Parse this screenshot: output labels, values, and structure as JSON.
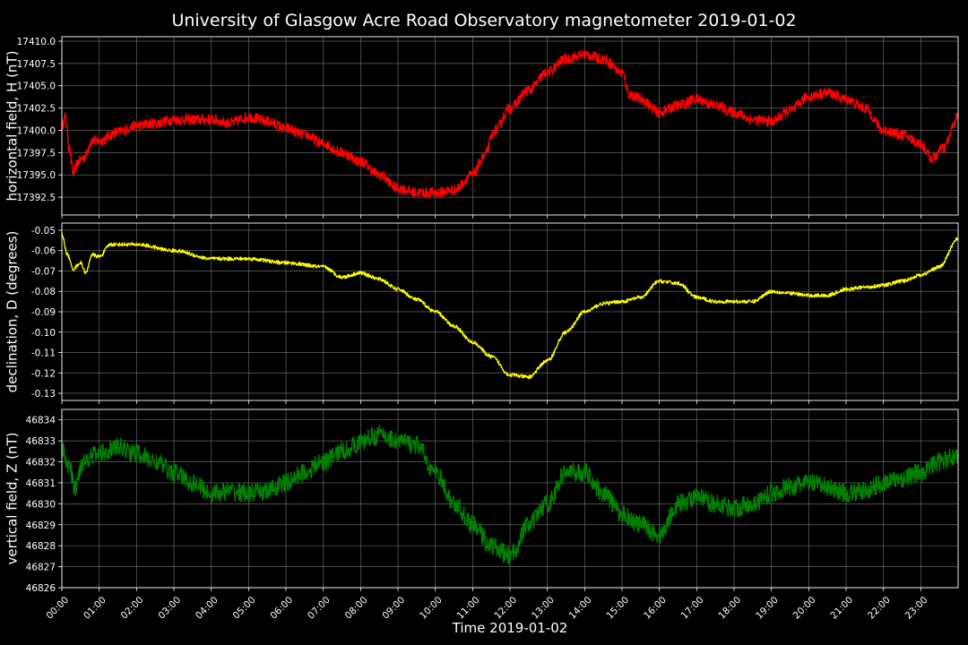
{
  "chart_data": {
    "type": "line",
    "title": "University of Glasgow Acre Road Observatory magnetometer 2019-01-02",
    "xlabel": "Time 2019-01-02",
    "x_ticks": [
      "00:00",
      "01:00",
      "02:00",
      "03:00",
      "04:00",
      "05:00",
      "06:00",
      "07:00",
      "08:00",
      "09:00",
      "10:00",
      "11:00",
      "12:00",
      "13:00",
      "14:00",
      "15:00",
      "16:00",
      "17:00",
      "18:00",
      "19:00",
      "20:00",
      "21:00",
      "22:00",
      "23:00"
    ],
    "xlim_hours": [
      0,
      24
    ],
    "grid": true,
    "panels": [
      {
        "name": "horizontal",
        "ylabel": "horizontal field, H (nT)",
        "color": "#ff0000",
        "ylim": [
          17390.5,
          17410.5
        ],
        "y_ticks": [
          17392.5,
          17395.0,
          17397.5,
          17400.0,
          17402.5,
          17405.0,
          17407.5,
          17410.0
        ],
        "tick_decimals": 1,
        "noise": 0.6,
        "hours": [
          0,
          0.1,
          0.2,
          0.3,
          0.45,
          0.6,
          0.8,
          1,
          1.5,
          2,
          2.5,
          3,
          3.5,
          4,
          4.5,
          5,
          5.5,
          6,
          6.5,
          7,
          7.5,
          8,
          8.5,
          9,
          9.5,
          10,
          10.5,
          11,
          11.3,
          11.6,
          12,
          12.5,
          13,
          13.5,
          14,
          14.5,
          15,
          15.2,
          15.5,
          16,
          16.5,
          17,
          17.5,
          18,
          18.5,
          19,
          19.5,
          20,
          20.5,
          21,
          21.5,
          22,
          22.5,
          23,
          23.3,
          23.6,
          24
        ],
        "values": [
          17400.5,
          17401.5,
          17398,
          17395.2,
          17396.5,
          17397,
          17398.8,
          17398.8,
          17399.8,
          17400.5,
          17400.8,
          17401.2,
          17401.2,
          17401.2,
          17400.8,
          17401.5,
          17401,
          17400.2,
          17399.5,
          17398.5,
          17397.5,
          17396.5,
          17395,
          17393.5,
          17393,
          17393,
          17393.3,
          17395,
          17397,
          17400,
          17402.5,
          17404.5,
          17406.5,
          17408,
          17408.5,
          17408,
          17406.5,
          17404,
          17403.5,
          17402,
          17402.8,
          17403.5,
          17402.8,
          17402,
          17401.2,
          17401,
          17402.2,
          17403.8,
          17404.2,
          17403.5,
          17402.5,
          17400,
          17399.5,
          17398.5,
          17396.8,
          17398,
          17401.5
        ]
      },
      {
        "name": "declination",
        "ylabel": "declination, D (degrees)",
        "color": "#ffff00",
        "ylim": [
          -0.1335,
          -0.0465
        ],
        "y_ticks": [
          -0.13,
          -0.12,
          -0.11,
          -0.1,
          -0.09,
          -0.08,
          -0.07,
          -0.06,
          -0.05
        ],
        "tick_decimals": 2,
        "noise": 0.0009,
        "hours": [
          0,
          0.15,
          0.3,
          0.5,
          0.65,
          0.8,
          1,
          1.3,
          2,
          3,
          4,
          5,
          6,
          7,
          7.5,
          8,
          8.5,
          9,
          9.5,
          10,
          10.5,
          11,
          11.5,
          12,
          12.5,
          13,
          13.5,
          14,
          14.5,
          15,
          15.5,
          16,
          16.5,
          17,
          17.5,
          18,
          18.5,
          19,
          19.5,
          20,
          20.5,
          21,
          21.5,
          22,
          22.5,
          23,
          23.5,
          24
        ],
        "values": [
          -0.052,
          -0.062,
          -0.069,
          -0.066,
          -0.071,
          -0.062,
          -0.063,
          -0.057,
          -0.057,
          -0.06,
          -0.064,
          -0.064,
          -0.066,
          -0.068,
          -0.073,
          -0.071,
          -0.074,
          -0.079,
          -0.084,
          -0.09,
          -0.097,
          -0.105,
          -0.112,
          -0.121,
          -0.122,
          -0.114,
          -0.1,
          -0.09,
          -0.086,
          -0.085,
          -0.083,
          -0.075,
          -0.076,
          -0.083,
          -0.085,
          -0.085,
          -0.085,
          -0.08,
          -0.081,
          -0.082,
          -0.082,
          -0.079,
          -0.078,
          -0.077,
          -0.075,
          -0.072,
          -0.068,
          -0.054
        ]
      },
      {
        "name": "vertical",
        "ylabel": "vertical field, Z (nT)",
        "color": "#008000",
        "ylim": [
          46826,
          46834.5
        ],
        "y_ticks": [
          46826,
          46827,
          46828,
          46829,
          46830,
          46831,
          46832,
          46833,
          46834
        ],
        "tick_decimals": 0,
        "noise": 0.45,
        "hours": [
          0,
          0.2,
          0.35,
          0.55,
          0.8,
          1,
          1.5,
          2,
          2.5,
          3,
          3.5,
          4,
          4.5,
          5,
          5.5,
          6,
          6.5,
          7,
          7.5,
          8,
          8.3,
          8.5,
          9,
          9.5,
          10,
          10.5,
          11,
          11.5,
          12,
          12.5,
          13,
          13.5,
          14,
          14.5,
          15,
          15.5,
          16,
          16.5,
          17,
          17.5,
          18,
          18.5,
          19,
          19.5,
          20,
          20.5,
          21,
          21.5,
          22,
          22.5,
          23,
          23.5,
          24
        ],
        "values": [
          46832.5,
          46831.8,
          46830.7,
          46832,
          46832.3,
          46832.4,
          46832.7,
          46832.4,
          46832,
          46831.5,
          46831,
          46830.5,
          46830.6,
          46830.5,
          46830.6,
          46831,
          46831.5,
          46832,
          46832.5,
          46832.9,
          46833.2,
          46833.3,
          46833,
          46832.8,
          46831.5,
          46830,
          46829,
          46828,
          46827.5,
          46829,
          46830,
          46831.5,
          46831.5,
          46830.5,
          46829.5,
          46829,
          46828.5,
          46830,
          46830.3,
          46830,
          46829.8,
          46830,
          46830.5,
          46830.8,
          46831,
          46830.8,
          46830.5,
          46830.6,
          46831,
          46831.2,
          46831.5,
          46832,
          46832.3
        ]
      }
    ]
  }
}
